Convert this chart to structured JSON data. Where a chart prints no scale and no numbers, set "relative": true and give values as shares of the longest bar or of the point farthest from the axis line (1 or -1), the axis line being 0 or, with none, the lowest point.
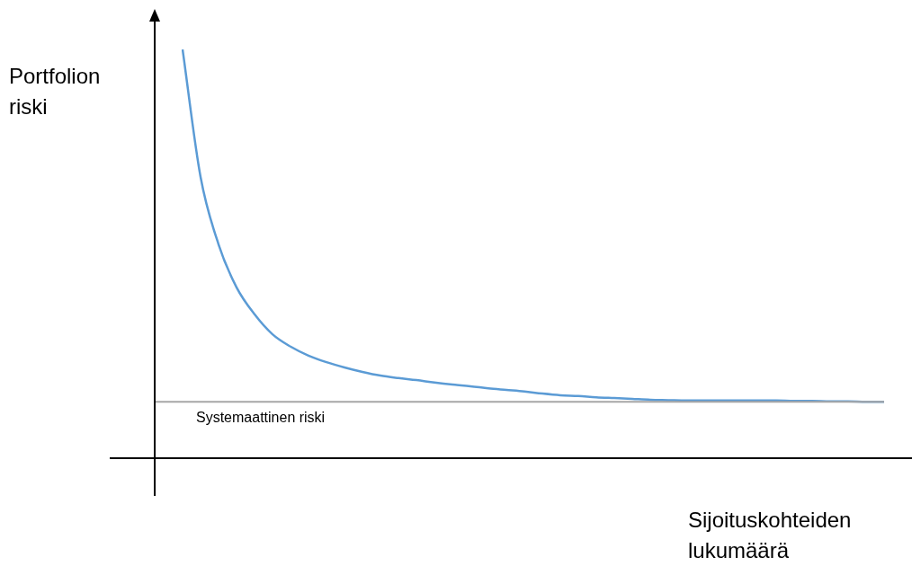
{
  "chart_data": {
    "type": "line",
    "relative": true,
    "ylabel": "Portfolion riski",
    "xlabel": "Sijoituskohteiden lukumäärä",
    "marker": "none",
    "categories": [
      null,
      null,
      null,
      null,
      null,
      null,
      null,
      null,
      null,
      null,
      null,
      null,
      null,
      null,
      null,
      null,
      null,
      null,
      null,
      null,
      null,
      null,
      null,
      null,
      null,
      null,
      null,
      null,
      null,
      null,
      null,
      null,
      null,
      null,
      null,
      null,
      null,
      null,
      null,
      null
    ],
    "series": [
      {
        "color": "#5b9bd5",
        "values": [
          1.0,
          0.688,
          0.523,
          0.418,
          0.352,
          0.303,
          0.273,
          0.251,
          0.235,
          0.222,
          0.211,
          0.202,
          0.196,
          0.191,
          0.185,
          0.18,
          0.176,
          0.171,
          0.167,
          0.163,
          0.158,
          0.154,
          0.152,
          0.149,
          0.147,
          0.145,
          0.143,
          0.142,
          0.141,
          0.141,
          0.141,
          0.141,
          0.141,
          0.141,
          0.14,
          0.14,
          0.139,
          0.139,
          0.138,
          0.138
        ]
      }
    ],
    "ref_lines": [
      {
        "axis": "y",
        "value": 0.138,
        "label": "Systemaattinen riski",
        "color": "#a6a6a6"
      }
    ]
  }
}
